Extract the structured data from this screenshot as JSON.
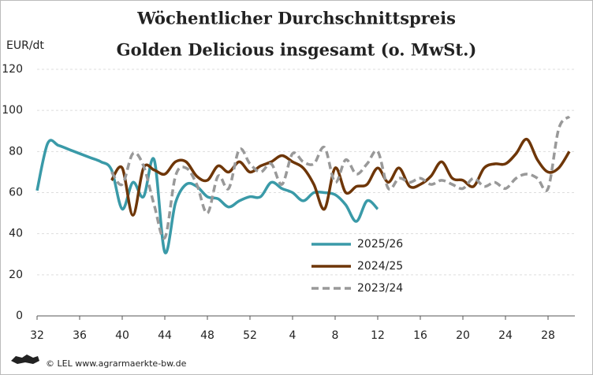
{
  "chart_data": {
    "type": "line",
    "title": "Wöchentlicher Durchschnittspreis",
    "subtitle": "Golden Delicious insgesamt (o. MwSt.)",
    "y_label": "EUR/dt",
    "footer": "© LEL www.agrarmaerkte-bw.de",
    "categories": [
      "32",
      null,
      null,
      null,
      "36",
      null,
      null,
      null,
      "40",
      null,
      null,
      null,
      "44",
      null,
      null,
      null,
      "48",
      null,
      null,
      null,
      "52",
      null,
      null,
      null,
      "4",
      null,
      null,
      null,
      "8",
      null,
      null,
      null,
      "12",
      null,
      null,
      null,
      "16",
      null,
      null,
      null,
      "20",
      null,
      null,
      null,
      "24",
      null,
      null,
      null,
      "28",
      null,
      null
    ],
    "ylim": [
      0,
      120
    ],
    "yticks": [
      0,
      20,
      40,
      60,
      80,
      100,
      120
    ],
    "grid": true,
    "series": [
      {
        "name": "2025/26",
        "color": "#3a9aa8",
        "dash": false,
        "values": [
          61,
          84,
          83,
          81,
          79,
          77,
          75,
          71,
          52,
          65,
          58,
          76,
          31,
          55,
          64,
          63,
          58,
          57,
          53,
          56,
          58,
          58,
          65,
          62,
          60,
          56,
          60,
          60,
          59,
          54,
          46,
          56,
          52,
          null,
          null,
          null,
          null,
          null,
          null,
          null,
          null,
          null,
          null,
          null,
          null,
          null,
          null,
          null,
          null,
          null,
          null
        ]
      },
      {
        "name": "2024/25",
        "color": "#6e3608",
        "dash": false,
        "values": [
          null,
          null,
          null,
          null,
          null,
          null,
          null,
          66,
          72,
          49,
          72,
          71,
          69,
          75,
          75,
          68,
          66,
          73,
          70,
          75,
          70,
          73,
          75,
          78,
          75,
          72,
          64,
          52,
          72,
          60,
          63,
          64,
          72,
          65,
          72,
          63,
          64,
          68,
          75,
          67,
          66,
          63,
          72,
          74,
          74,
          79,
          86,
          76,
          70,
          72,
          80
        ]
      },
      {
        "name": "2023/24",
        "color": "#999999",
        "dash": true,
        "values": [
          null,
          null,
          null,
          null,
          null,
          null,
          null,
          70,
          64,
          79,
          73,
          54,
          38,
          68,
          72,
          64,
          50,
          68,
          62,
          81,
          74,
          70,
          74,
          64,
          79,
          75,
          74,
          82,
          65,
          76,
          69,
          74,
          80,
          62,
          67,
          65,
          67,
          64,
          66,
          64,
          62,
          67,
          63,
          65,
          62,
          67,
          69,
          67,
          62,
          91,
          97
        ]
      }
    ]
  }
}
